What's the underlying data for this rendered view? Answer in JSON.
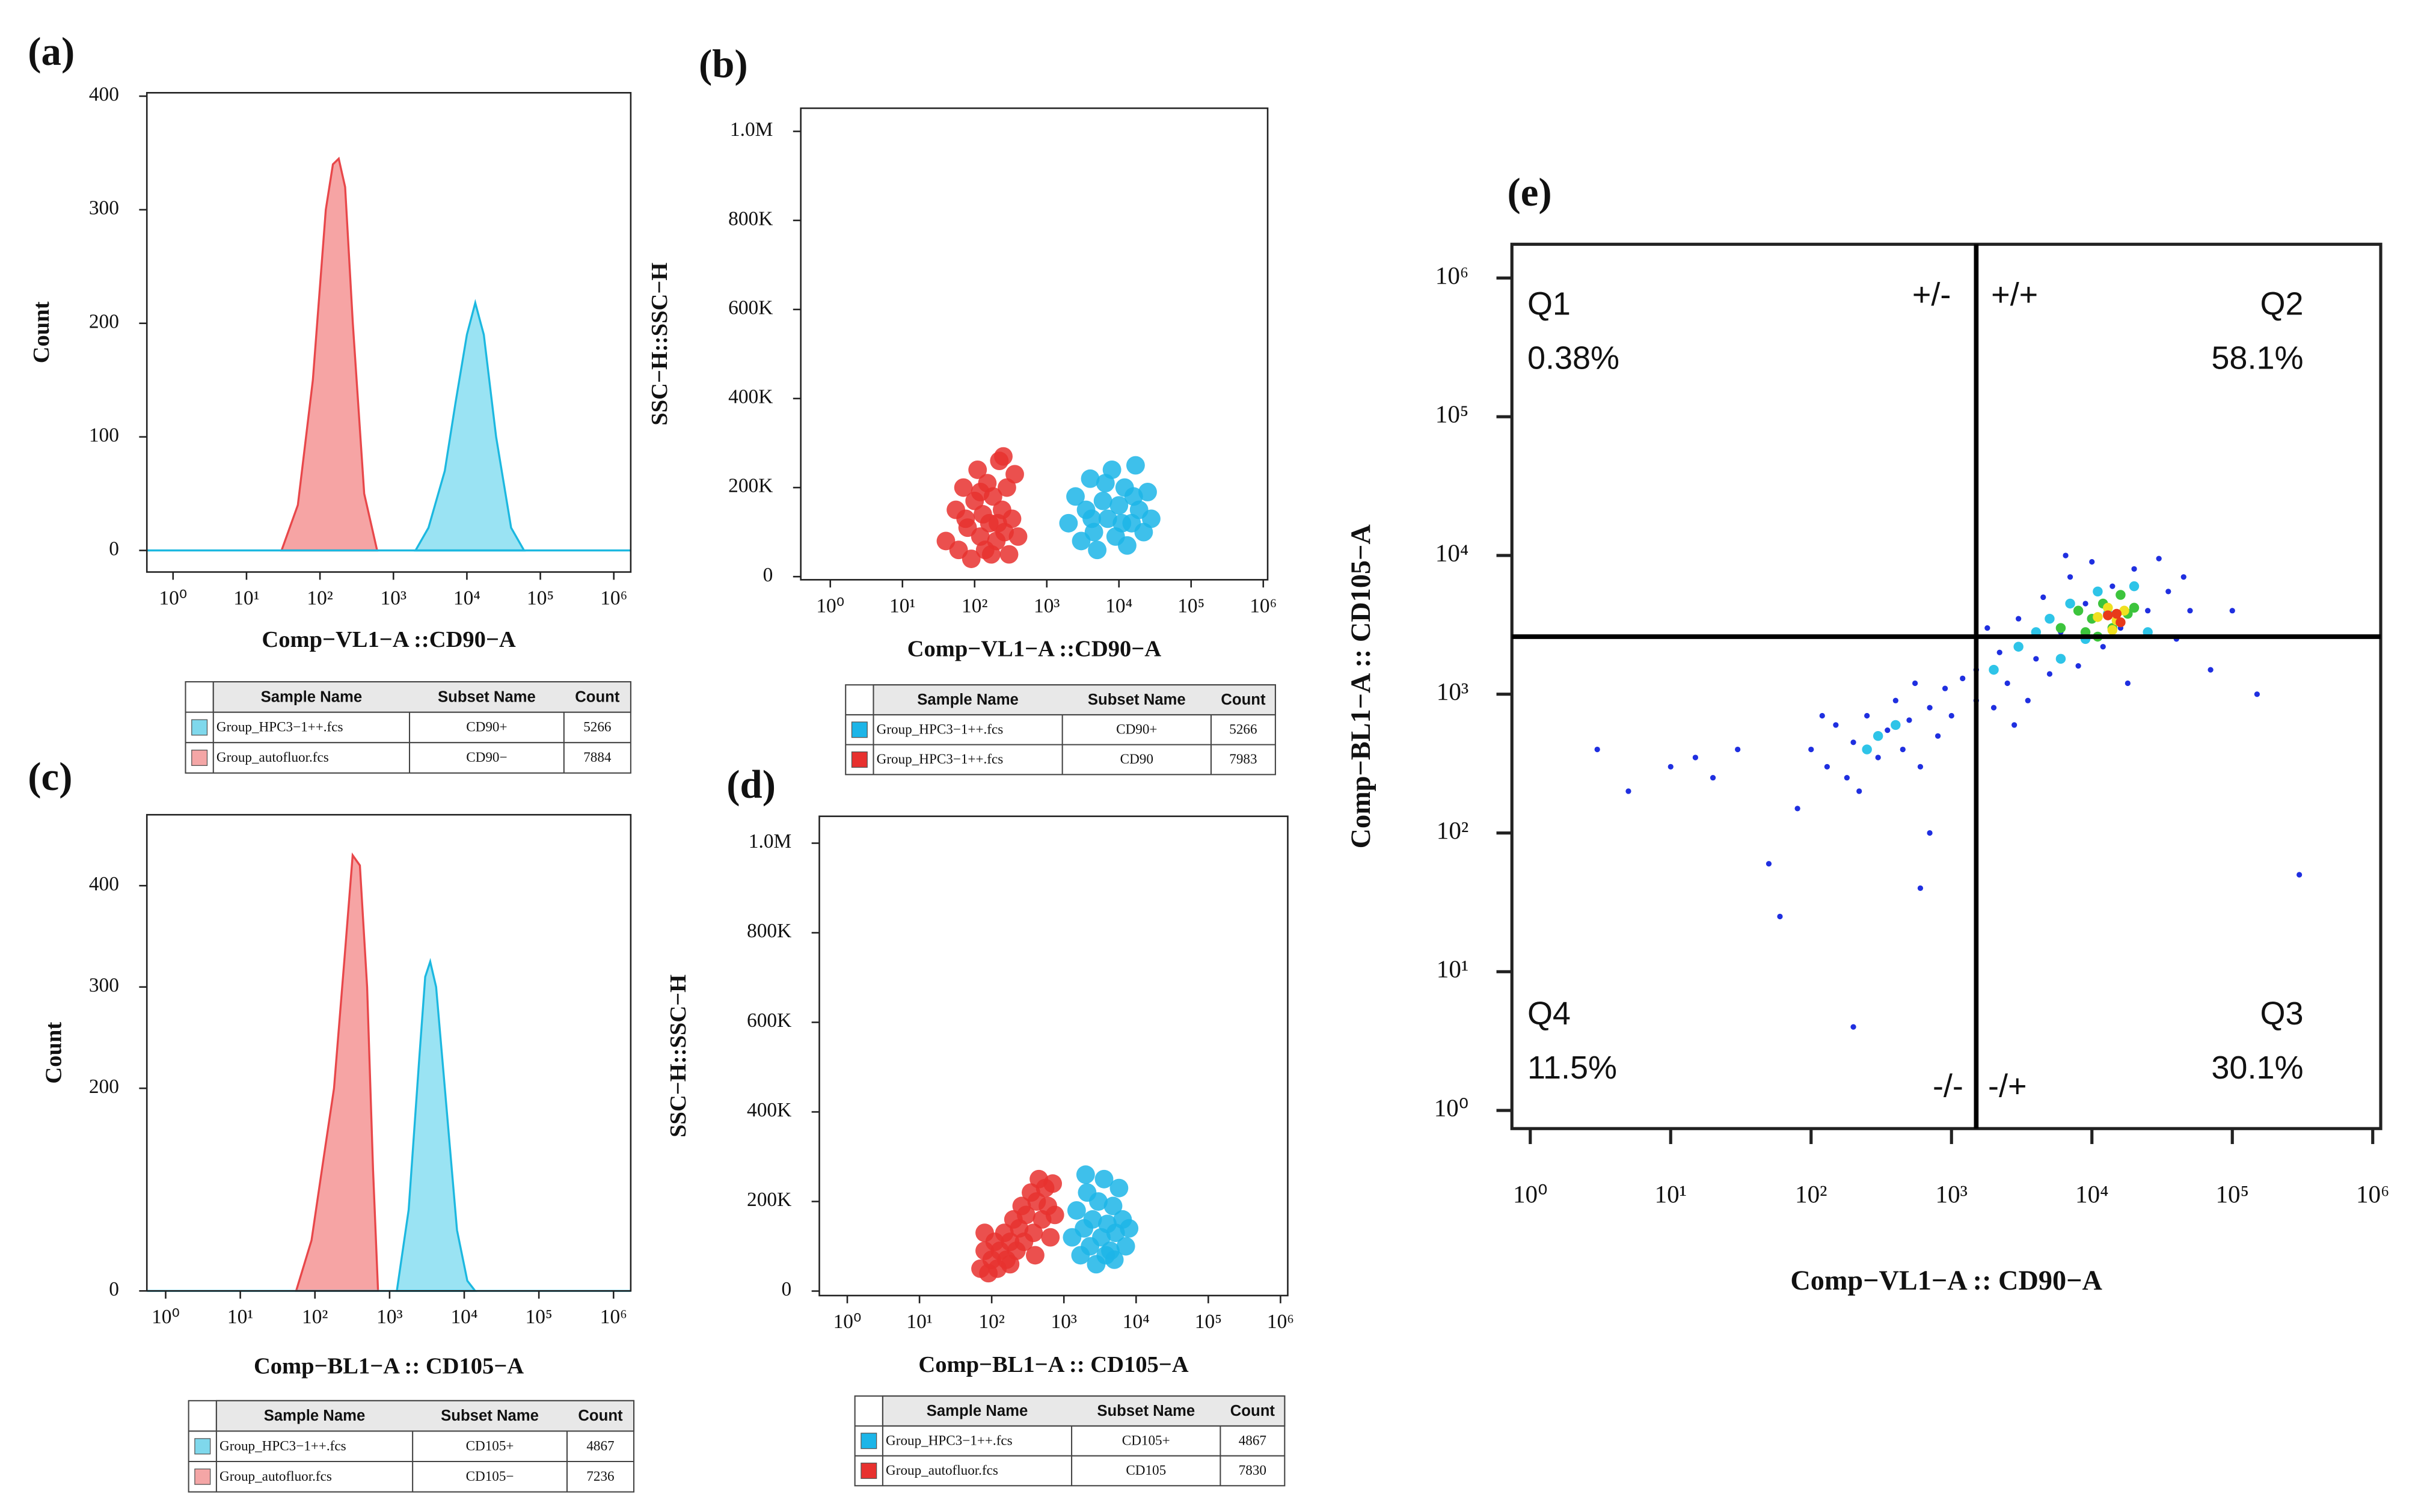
{
  "chart_data": [
    {
      "type": "area",
      "title": "(a)",
      "x_label": "Comp−VL1−A ::CD90−A",
      "y_label": "Count",
      "xlog": true,
      "xlim": [
        0.44,
        1700000
      ],
      "ylim": [
        -19,
        403
      ],
      "xticks": [
        {
          "value": 1,
          "label": "10⁰"
        },
        {
          "value": 10,
          "label": "10¹"
        },
        {
          "value": 100,
          "label": "10²"
        },
        {
          "value": 1000,
          "label": "10³"
        },
        {
          "value": 10000,
          "label": "10⁴"
        },
        {
          "value": 100000,
          "label": "10⁵"
        },
        {
          "value": 1000000,
          "label": "10⁶"
        }
      ],
      "yticks": [
        0,
        100,
        200,
        300,
        400
      ],
      "series": [
        {
          "color": "#f59a9a",
          "line_color": "#e8474a",
          "x": [
            30,
            50,
            80,
            120,
            150,
            180,
            220,
            280,
            400,
            600
          ],
          "values": [
            0,
            40,
            150,
            300,
            340,
            345,
            320,
            200,
            50,
            0
          ]
        },
        {
          "color": "#8fe0f2",
          "line_color": "#1cb8e0",
          "x": [
            2000,
            3000,
            5000,
            7000,
            10000,
            13000,
            17000,
            25000,
            40000,
            60000
          ],
          "values": [
            0,
            20,
            70,
            130,
            190,
            218,
            190,
            100,
            20,
            0
          ]
        }
      ],
      "table": {
        "columns": [
          "Sample Name",
          "Subset Name",
          "Count"
        ],
        "colors": [
          "#7fd8ec",
          "#f4a6a6"
        ],
        "rows": [
          [
            "Group_HPC3−1++.fcs",
            "CD90+",
            5266
          ],
          [
            "Group_autofluor.fcs",
            "CD90−",
            7884
          ]
        ]
      }
    },
    {
      "type": "scatter",
      "title": "(b)",
      "x_label": "Comp−VL1−A ::CD90−A",
      "y_label": "SSC−H::SSC−H",
      "xlog": true,
      "xlim": [
        0.39,
        1150000
      ],
      "ylim": [
        -7000,
        1052000
      ],
      "xticks": [
        {
          "value": 1,
          "label": "10⁰"
        },
        {
          "value": 10,
          "label": "10¹"
        },
        {
          "value": 100,
          "label": "10²"
        },
        {
          "value": 1000,
          "label": "10³"
        },
        {
          "value": 10000,
          "label": "10⁴"
        },
        {
          "value": 100000,
          "label": "10⁵"
        },
        {
          "value": 1000000,
          "label": "10⁶"
        }
      ],
      "yticks": [
        0,
        {
          "value": 200000,
          "label": "200K"
        },
        {
          "value": 400000,
          "label": "400K"
        },
        {
          "value": 600000,
          "label": "600K"
        },
        {
          "value": 800000,
          "label": "800K"
        },
        {
          "value": 1000000,
          "label": "1.0M"
        }
      ],
      "series": [
        {
          "color": "#e8312f",
          "x": [
            40,
            55,
            60,
            70,
            80,
            90,
            100,
            110,
            120,
            130,
            140,
            150,
            160,
            180,
            200,
            220,
            240,
            260,
            280,
            300,
            330,
            360,
            400,
            120,
            170,
            250,
            75,
            210
          ],
          "values": [
            80000,
            150000,
            60000,
            200000,
            110000,
            40000,
            170000,
            240000,
            90000,
            140000,
            60000,
            210000,
            120000,
            180000,
            80000,
            260000,
            150000,
            100000,
            200000,
            50000,
            130000,
            230000,
            90000,
            190000,
            50000,
            270000,
            130000,
            120000
          ]
        },
        {
          "color": "#1cb5e8",
          "x": [
            2000,
            2500,
            3000,
            3500,
            4000,
            4500,
            5000,
            6000,
            7000,
            8000,
            9000,
            10000,
            12000,
            13000,
            15000,
            17000,
            19000,
            22000,
            25000,
            28000,
            6500,
            11000,
            4200,
            16000
          ],
          "values": [
            120000,
            180000,
            80000,
            150000,
            220000,
            100000,
            60000,
            170000,
            130000,
            240000,
            90000,
            160000,
            200000,
            70000,
            120000,
            250000,
            150000,
            100000,
            190000,
            130000,
            210000,
            120000,
            130000,
            180000
          ]
        }
      ],
      "table": {
        "columns": [
          "Sample Name",
          "Subset Name",
          "Count"
        ],
        "colors": [
          "#1cb5e8",
          "#e8312f"
        ],
        "rows": [
          [
            "Group_HPC3−1++.fcs",
            "CD90+",
            5266
          ],
          [
            "Group_HPC3−1++.fcs",
            "CD90",
            7983
          ]
        ]
      }
    },
    {
      "type": "area",
      "title": "(c)",
      "x_label": "Comp−BL1−A :: CD105−A",
      "y_label": "Count",
      "xlog": true,
      "xlim": [
        0.56,
        1700000
      ],
      "ylim": [
        0,
        470
      ],
      "xticks": [
        {
          "value": 1,
          "label": "10⁰"
        },
        {
          "value": 10,
          "label": "10¹"
        },
        {
          "value": 100,
          "label": "10²"
        },
        {
          "value": 1000,
          "label": "10³"
        },
        {
          "value": 10000,
          "label": "10⁴"
        },
        {
          "value": 100000,
          "label": "10⁵"
        },
        {
          "value": 1000000,
          "label": "10⁶"
        }
      ],
      "yticks": [
        0,
        200,
        300,
        400
      ],
      "series": [
        {
          "color": "#f59a9a",
          "line_color": "#e8474a",
          "x": [
            56,
            90,
            130,
            180,
            250,
            320,
            400,
            500,
            600,
            700
          ],
          "values": [
            0,
            50,
            130,
            200,
            330,
            430,
            420,
            300,
            120,
            0
          ]
        },
        {
          "color": "#8fe0f2",
          "line_color": "#1cb8e0",
          "x": [
            1250,
            1800,
            2500,
            3000,
            3500,
            4200,
            5500,
            8000,
            11000,
            14000
          ],
          "values": [
            0,
            80,
            230,
            310,
            325,
            300,
            200,
            60,
            10,
            0
          ]
        }
      ],
      "table": {
        "columns": [
          "Sample Name",
          "Subset Name",
          "Count"
        ],
        "colors": [
          "#7fd8ec",
          "#f4a6a6"
        ],
        "rows": [
          [
            "Group_HPC3−1++.fcs",
            "CD105+",
            4867
          ],
          [
            "Group_autofluor.fcs",
            "CD105−",
            7236
          ]
        ]
      }
    },
    {
      "type": "scatter",
      "title": "(d)",
      "x_label": "Comp−BL1−A :: CD105−A",
      "y_label": "SSC−H::SSC−H",
      "xlog": true,
      "xlim": [
        0.41,
        1260000
      ],
      "ylim": [
        -10000,
        1060000
      ],
      "xticks": [
        {
          "value": 1,
          "label": "10⁰"
        },
        {
          "value": 10,
          "label": "10¹"
        },
        {
          "value": 100,
          "label": "10²"
        },
        {
          "value": 1000,
          "label": "10³"
        },
        {
          "value": 10000,
          "label": "10⁴"
        },
        {
          "value": 100000,
          "label": "10⁵"
        },
        {
          "value": 1000000,
          "label": "10⁶"
        }
      ],
      "yticks": [
        0,
        {
          "value": 200000,
          "label": "200K"
        },
        {
          "value": 400000,
          "label": "400K"
        },
        {
          "value": 600000,
          "label": "600K"
        },
        {
          "value": 800000,
          "label": "800K"
        },
        {
          "value": 1000000,
          "label": "1.0M"
        }
      ],
      "series": [
        {
          "color": "#e8312f",
          "x": [
            70,
            80,
            90,
            100,
            110,
            120,
            130,
            150,
            160,
            180,
            200,
            220,
            240,
            260,
            280,
            300,
            350,
            380,
            420,
            450,
            500,
            550,
            600,
            650,
            700,
            750,
            80,
            180,
            400
          ],
          "values": [
            50000,
            90000,
            40000,
            70000,
            110000,
            50000,
            90000,
            130000,
            70000,
            110000,
            160000,
            90000,
            140000,
            190000,
            110000,
            170000,
            220000,
            130000,
            200000,
            250000,
            160000,
            230000,
            190000,
            120000,
            240000,
            170000,
            130000,
            60000,
            80000
          ]
        },
        {
          "color": "#1cb5e8",
          "x": [
            1300,
            1500,
            1700,
            1900,
            2100,
            2300,
            2500,
            2800,
            3000,
            3300,
            3600,
            4000,
            4400,
            4800,
            5200,
            5800,
            6500,
            7200,
            8000,
            3800,
            2000,
            5000
          ],
          "values": [
            120000,
            180000,
            80000,
            140000,
            220000,
            100000,
            160000,
            60000,
            200000,
            120000,
            250000,
            150000,
            90000,
            190000,
            130000,
            230000,
            160000,
            100000,
            140000,
            80000,
            260000,
            70000
          ]
        }
      ],
      "table": {
        "columns": [
          "Sample Name",
          "Subset Name",
          "Count"
        ],
        "colors": [
          "#1cb5e8",
          "#e8312f"
        ],
        "rows": [
          [
            "Group_HPC3−1++.fcs",
            "CD105+",
            4867
          ],
          [
            "Group_autofluor.fcs",
            "CD105",
            7830
          ]
        ]
      }
    },
    {
      "type": "scatter",
      "title": "(e)",
      "x_label": "Comp−VL1−A :: CD90−A",
      "y_label": "Comp−BL1−A :: CD105−A",
      "xlog": true,
      "ylog": true,
      "xlim": [
        0.74,
        1140000
      ],
      "ylim": [
        0.74,
        1750000
      ],
      "xticks": [
        {
          "value": 1,
          "label": "10⁰"
        },
        {
          "value": 10,
          "label": "10¹"
        },
        {
          "value": 100,
          "label": "10²"
        },
        {
          "value": 1000,
          "label": "10³"
        },
        {
          "value": 10000,
          "label": "10⁴"
        },
        {
          "value": 100000,
          "label": "10⁵"
        },
        {
          "value": 1000000,
          "label": "10⁶"
        }
      ],
      "yticks": [
        {
          "value": 1,
          "label": "10⁰"
        },
        {
          "value": 10,
          "label": "10¹"
        },
        {
          "value": 100,
          "label": "10²"
        },
        {
          "value": 1000,
          "label": "10³"
        },
        {
          "value": 10000,
          "label": "10⁴"
        },
        {
          "value": 100000,
          "label": "10⁵"
        },
        {
          "value": 1000000,
          "label": "10⁶"
        }
      ],
      "gates": {
        "x": 1500,
        "y": 2600
      },
      "quadrants": {
        "names": [
          "Q1",
          "Q2",
          "Q3",
          "Q4"
        ],
        "values": [
          0.38,
          58.1,
          30.1,
          11.5
        ],
        "value_labels": [
          "0.38%",
          "58.1%",
          "30.1%",
          "11.5%"
        ],
        "signs": [
          "+/-",
          "+/+",
          "-/+",
          "-/-"
        ]
      },
      "series": [
        {
          "color": "#1f2fe0",
          "x": [
            3,
            5,
            10,
            15,
            20,
            30,
            50,
            60,
            80,
            200,
            600,
            700,
            70000,
            100000,
            300000,
            150000,
            100,
            130,
            150,
            180,
            200,
            250,
            300,
            350,
            400,
            450,
            500,
            600,
            700,
            800,
            900,
            1000,
            1200,
            1500,
            120,
            220,
            550,
            1500,
            2000,
            2200,
            2500,
            3000,
            3500,
            4000,
            4500,
            5000,
            6000,
            7000,
            8000,
            9000,
            10000,
            12000,
            14000,
            16000,
            20000,
            25000,
            30000,
            35000,
            40000,
            45000,
            1800,
            2800,
            6500,
            18000,
            50000
          ],
          "values": [
            400,
            200,
            300,
            350,
            250,
            400,
            60,
            25,
            150,
            4,
            40,
            100,
            1500,
            4000,
            50,
            1000,
            400,
            300,
            600,
            250,
            450,
            700,
            350,
            550,
            900,
            400,
            650,
            300,
            800,
            500,
            1100,
            700,
            1300,
            900,
            700,
            200,
            1200,
            1500,
            800,
            2000,
            1200,
            3500,
            900,
            1800,
            5000,
            1400,
            2800,
            7000,
            1600,
            4500,
            9000,
            2200,
            6000,
            3000,
            8000,
            4000,
            9500,
            5500,
            2500,
            7000,
            3000,
            600,
            10000,
            1200,
            4000
          ]
        },
        {
          "color": "#2ec4e8",
          "x": [
            2000,
            3000,
            4000,
            5000,
            6000,
            7000,
            9000,
            11000,
            13000,
            20000,
            25000,
            300,
            400,
            250
          ],
          "values": [
            1500,
            2200,
            2800,
            3500,
            1800,
            4500,
            2500,
            5500,
            3800,
            6000,
            2800,
            500,
            600,
            400
          ]
        },
        {
          "color": "#3cc43c",
          "x": [
            6000,
            8000,
            9000,
            10000,
            12000,
            14000,
            16000,
            18000,
            11000,
            20000
          ],
          "values": [
            3000,
            4000,
            2800,
            3500,
            4500,
            3000,
            5200,
            3800,
            2600,
            4200
          ]
        },
        {
          "color": "#f0e020",
          "x": [
            11000,
            13000,
            15000,
            17000,
            14000
          ],
          "values": [
            3600,
            4200,
            3400,
            4000,
            2900
          ]
        },
        {
          "color": "#e83a1a",
          "x": [
            13000,
            15000,
            16000
          ],
          "values": [
            3700,
            3800,
            3300
          ]
        }
      ]
    }
  ]
}
